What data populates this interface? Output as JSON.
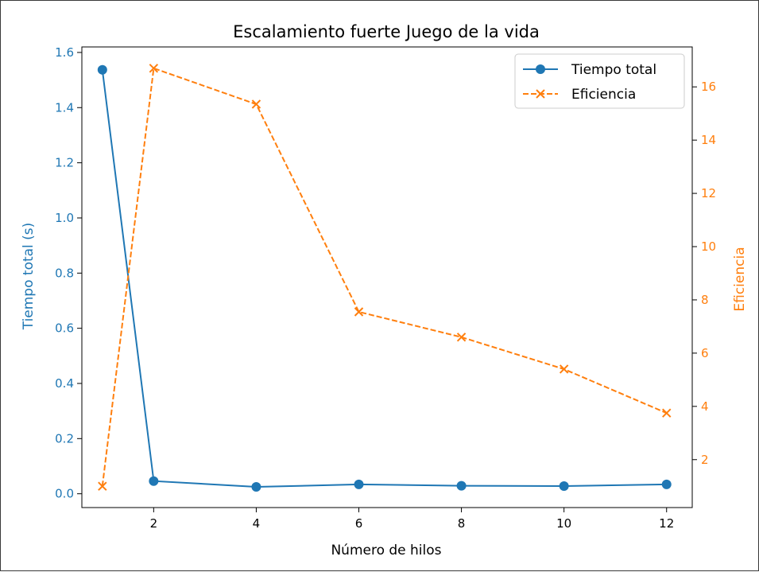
{
  "chart_data": {
    "type": "line",
    "title": "Escalamiento fuerte Juego de la vida",
    "xlabel": "Número de hilos",
    "ylabel": "Tiempo total (s)",
    "y2label": "Eficiencia",
    "xlim": [
      0.6,
      12.5
    ],
    "ylim": [
      -0.05,
      1.62
    ],
    "y2lim": [
      0.2,
      17.5
    ],
    "xticks": [
      2,
      4,
      6,
      8,
      10,
      12
    ],
    "yticks": [
      0.0,
      0.2,
      0.4,
      0.6,
      0.8,
      1.0,
      1.2,
      1.4,
      1.6
    ],
    "y2ticks": [
      2,
      4,
      6,
      8,
      10,
      12,
      14,
      16
    ],
    "legend_position": "top-right",
    "grid": false,
    "x": [
      1,
      2,
      4,
      6,
      8,
      10,
      12
    ],
    "series": [
      {
        "name": "Tiempo total",
        "axis": "left",
        "color": "#1f77b4",
        "marker": "circle",
        "linestyle": "solid",
        "values": [
          1.537,
          0.046,
          0.025,
          0.034,
          0.029,
          0.028,
          0.034
        ]
      },
      {
        "name": "Eficiencia",
        "axis": "right",
        "color": "#ff7f0e",
        "marker": "x",
        "linestyle": "dashed",
        "values": [
          1.0,
          16.7,
          15.35,
          7.55,
          6.6,
          5.4,
          3.75
        ]
      }
    ],
    "colors": {
      "left_axis": "#1f77b4",
      "right_axis": "#ff7f0e",
      "axes": "#000000"
    }
  }
}
